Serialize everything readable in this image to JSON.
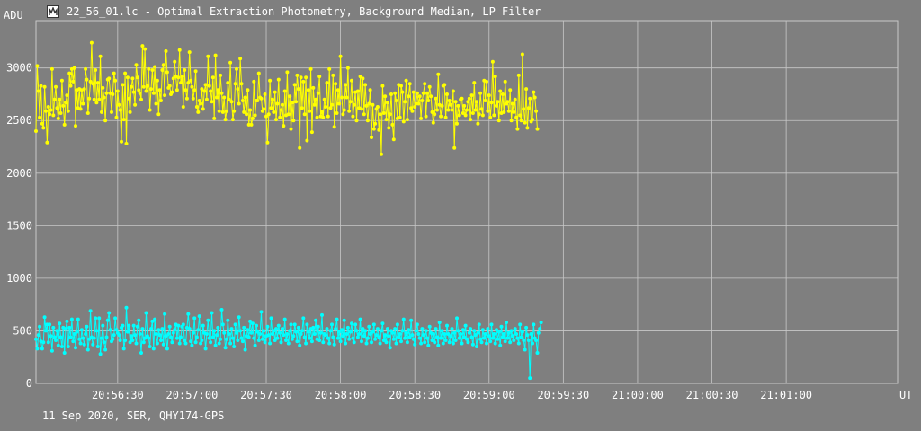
{
  "window": {
    "title": "22_56_01.lc - Optimal Extraction Photometry, Background Median, LP Filter",
    "icon": "lightcurve-app-icon"
  },
  "footer": {
    "text": "11 Sep 2020, SER, QHY174-GPS"
  },
  "colors": {
    "background": "#7f7f7f",
    "grid": "#c8c8c8",
    "series_1": "#ffff00",
    "series_2": "#00ffff"
  },
  "chart_data": {
    "type": "line",
    "markers": true,
    "grid": true,
    "ylabel": "ADU",
    "xlabel": "UT",
    "xlim": [
      "20:55:57",
      "20:56:52",
      "20:01:45"
    ],
    "x_range": [
      "20:55:57",
      "21:01:45"
    ],
    "ylim": [
      0,
      3450
    ],
    "y_ticks": [
      0,
      500,
      1000,
      1500,
      2000,
      2500,
      3000
    ],
    "x_ticks": [
      "20:56:30",
      "20:57:00",
      "20:57:30",
      "20:58:00",
      "20:58:30",
      "20:59:00",
      "20:59:30",
      "21:00:00",
      "21:00:30",
      "21:01:00"
    ],
    "series": [
      {
        "color": "#ffff00",
        "start_time": "20:55:57",
        "interval_s": 0.5,
        "values": [
          2400,
          3020,
          2780,
          2530,
          2830,
          2470,
          2430,
          2820,
          2590,
          2290,
          2630,
          2560,
          2600,
          2990,
          2550,
          2700,
          2820,
          2620,
          2520,
          2700,
          2570,
          2880,
          2640,
          2460,
          2670,
          2740,
          2590,
          2950,
          2830,
          2990,
          2870,
          3000,
          2450,
          2790,
          2620,
          2800,
          2610,
          2790,
          2660,
          2800,
          2990,
          2890,
          2570,
          2710,
          2870,
          3240,
          2850,
          2700,
          2980,
          2670,
          2860,
          2700,
          3110,
          2580,
          2810,
          2720,
          2500,
          2760,
          2890,
          2900,
          2760,
          2580,
          2750,
          2950,
          2880,
          2530,
          2780,
          2650,
          2600,
          2300,
          2840,
          2510,
          2950,
          2280,
          2910,
          2710,
          2580,
          2820,
          2900,
          2770,
          2650,
          3030,
          2910,
          2790,
          2760,
          2700,
          3210,
          2820,
          3180,
          2780,
          2830,
          2990,
          2600,
          2800,
          2980,
          2760,
          3010,
          2660,
          2880,
          2560,
          2790,
          2690,
          2980,
          3030,
          2740,
          3160,
          2960,
          2810,
          2830,
          2750,
          2770,
          2900,
          3060,
          2920,
          2790,
          2910,
          3170,
          2860,
          2920,
          2630,
          2980,
          2790,
          2710,
          2860,
          3150,
          2880,
          2820,
          2710,
          2790,
          2970,
          2630,
          2580,
          2690,
          2660,
          2800,
          2610,
          2780,
          2840,
          2700,
          3110,
          2830,
          2780,
          2680,
          2910,
          2520,
          3120,
          2720,
          2790,
          2590,
          2930,
          2760,
          2580,
          2720,
          2510,
          2590,
          2860,
          2700,
          3050,
          2680,
          2510,
          2590,
          2850,
          2990,
          2800,
          2660,
          3090,
          2850,
          2690,
          2580,
          2720,
          2560,
          2790,
          2460,
          2600,
          2460,
          2520,
          2870,
          2550,
          2690,
          2690,
          2950,
          2720,
          2710,
          2590,
          2610,
          2750,
          2540,
          2290,
          2560,
          2880,
          2620,
          2700,
          2580,
          2770,
          2510,
          2660,
          2890,
          2530,
          2600,
          2650,
          2450,
          2780,
          2550,
          2960,
          2560,
          2730,
          2420,
          2670,
          2500,
          2840,
          2680,
          2930,
          2800,
          2240,
          2910,
          2620,
          2870,
          2560,
          2910,
          2310,
          2790,
          2590,
          2990,
          2390,
          2810,
          2650,
          2700,
          2530,
          2760,
          2920,
          2540,
          2580,
          2530,
          2700,
          2630,
          2860,
          2540,
          2990,
          2620,
          2650,
          2930,
          2440,
          2850,
          2570,
          2790,
          2660,
          3110,
          2720,
          2560,
          2600,
          2840,
          2720,
          3000,
          2590,
          2680,
          2880,
          2540,
          2650,
          2770,
          2500,
          2780,
          2620,
          2920,
          2610,
          2900,
          2560,
          2840,
          2640,
          2500,
          2660,
          2790,
          2340,
          2650,
          2420,
          2470,
          2610,
          2630,
          2410,
          2560,
          2180,
          2830,
          2570,
          2730,
          2510,
          2670,
          2430,
          2560,
          2750,
          2460,
          2320,
          2760,
          2690,
          2520,
          2840,
          2530,
          2830,
          2770,
          2490,
          2680,
          2880,
          2510,
          2730,
          2850,
          2620,
          2590,
          2770,
          2630,
          2660,
          2760,
          2660,
          2730,
          2520,
          2690,
          2760,
          2850,
          2540,
          2760,
          2690,
          2820,
          2730,
          2580,
          2480,
          2560,
          2710,
          2600,
          2940,
          2650,
          2540,
          2640,
          2830,
          2840,
          2530,
          2750,
          2600,
          2690,
          2650,
          2600,
          2780,
          2240,
          2680,
          2470,
          2640,
          2550,
          2700,
          2710,
          2570,
          2640,
          2550,
          2600,
          2680,
          2710,
          2510,
          2740,
          2570,
          2860,
          2600,
          2680,
          2470,
          2560,
          2760,
          2610,
          2550,
          2880,
          2690,
          2870,
          2590,
          2740,
          2530,
          2670,
          3060,
          2550,
          2920,
          2640,
          2680,
          2500,
          2780,
          2570,
          2750,
          2580,
          2870,
          2660,
          2680,
          2590,
          2790,
          2500,
          2660,
          2580,
          2700,
          2530,
          2420,
          2930,
          2550,
          2500,
          3130,
          2610,
          2480,
          2800,
          2430,
          2620,
          2710,
          2490,
          2510,
          2770,
          2720,
          2590,
          2420
        ]
      },
      {
        "color": "#00ffff",
        "start_time": "20:55:57",
        "interval_s": 0.5,
        "values": [
          420,
          330,
          460,
          540,
          400,
          330,
          390,
          630,
          500,
          560,
          390,
          560,
          450,
          310,
          530,
          440,
          410,
          500,
          360,
          570,
          440,
          350,
          530,
          290,
          520,
          590,
          350,
          530,
          440,
          610,
          400,
          470,
          340,
          490,
          610,
          420,
          380,
          510,
          430,
          370,
          470,
          540,
          320,
          420,
          690,
          440,
          370,
          430,
          620,
          500,
          350,
          620,
          280,
          430,
          550,
          390,
          320,
          440,
          600,
          670,
          510,
          400,
          420,
          460,
          620,
          510,
          480,
          460,
          410,
          530,
          550,
          330,
          410,
          720,
          490,
          550,
          390,
          450,
          410,
          550,
          460,
          380,
          540,
          600,
          470,
          290,
          520,
          390,
          430,
          670,
          450,
          430,
          350,
          520,
          590,
          330,
          610,
          470,
          380,
          510,
          460,
          410,
          520,
          370,
          660,
          450,
          330,
          470,
          540,
          440,
          390,
          480,
          510,
          560,
          430,
          550,
          380,
          440,
          540,
          560,
          410,
          380,
          530,
          660,
          520,
          400,
          360,
          480,
          620,
          390,
          440,
          510,
          640,
          380,
          410,
          550,
          480,
          330,
          470,
          600,
          430,
          390,
          670,
          440,
          500,
          360,
          460,
          530,
          380,
          420,
          700,
          560,
          480,
          340,
          420,
          600,
          470,
          380,
          520,
          430,
          350,
          560,
          480,
          410,
          630,
          500,
          430,
          400,
          530,
          320,
          450,
          510,
          440,
          590,
          480,
          570,
          430,
          360,
          550,
          490,
          410,
          470,
          680,
          420,
          500,
          390,
          450,
          540,
          460,
          380,
          620,
          470,
          500,
          410,
          520,
          430,
          550,
          480,
          390,
          520,
          460,
          610,
          410,
          470,
          380,
          500,
          560,
          420,
          450,
          560,
          490,
          400,
          530,
          360,
          470,
          500,
          620,
          440,
          380,
          560,
          490,
          430,
          520,
          400,
          530,
          470,
          600,
          420,
          540,
          410,
          480,
          650,
          390,
          470,
          460,
          520,
          430,
          380,
          500,
          560,
          440,
          370,
          520,
          610,
          430,
          490,
          400,
          510,
          450,
          600,
          380,
          470,
          530,
          420,
          490,
          570,
          430,
          390,
          560,
          500,
          440,
          470,
          610,
          400,
          520,
          450,
          500,
          380,
          430,
          540,
          470,
          390,
          490,
          560,
          420,
          460,
          520,
          440,
          380,
          500,
          570,
          410,
          460,
          390,
          520,
          450,
          340,
          500,
          480,
          420,
          520,
          380,
          560,
          440,
          470,
          400,
          500,
          610,
          430,
          480,
          390,
          510,
          440,
          600,
          460,
          420,
          370,
          500,
          560,
          470,
          430,
          380,
          520,
          460,
          390,
          500,
          430,
          360,
          540,
          480,
          410,
          470,
          390,
          520,
          440,
          360,
          580,
          430,
          500,
          380,
          470,
          410,
          550,
          470,
          390,
          450,
          520,
          380,
          480,
          410,
          620,
          500,
          430,
          470,
          380,
          510,
          440,
          550,
          420,
          390,
          480,
          520,
          440,
          370,
          500,
          460,
          350,
          480,
          560,
          420,
          390,
          510,
          430,
          470,
          380,
          520,
          450,
          400,
          560,
          430,
          470,
          380,
          510,
          420,
          490,
          360,
          540,
          440,
          470,
          400,
          580,
          430,
          480,
          390,
          500,
          450,
          410,
          520,
          470,
          430,
          380,
          560,
          440,
          490,
          410,
          320,
          530,
          460,
          410,
          50,
          470,
          380,
          560,
          430,
          410,
          290,
          480,
          520,
          580
        ]
      }
    ]
  }
}
